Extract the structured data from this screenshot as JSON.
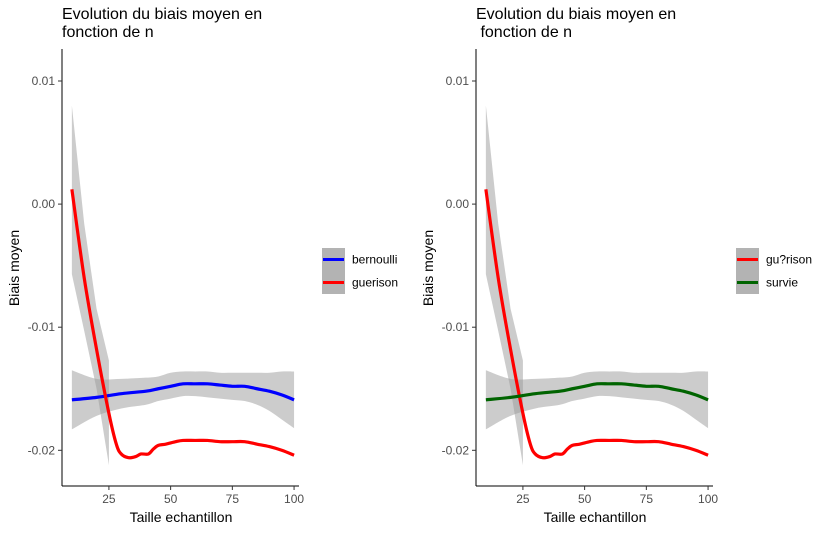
{
  "chart_data": [
    {
      "type": "line",
      "title": [
        "Evolution du biais moyen en",
        "fonction de n"
      ],
      "xlabel": "Taille echantillon",
      "ylabel": "Biais moyen",
      "xlim": [
        6,
        102
      ],
      "ylim": [
        -0.0229,
        0.0126
      ],
      "xticks": [
        25,
        50,
        75,
        100
      ],
      "yticks": [
        0.01,
        0.0,
        -0.01,
        -0.02
      ],
      "yticklabels": [
        "0.01",
        "0.00",
        "-0.01",
        "-0.02"
      ],
      "grid": false,
      "legend": "right",
      "series": [
        {
          "name": "bernoulli",
          "color": "#0000ff",
          "x": [
            10,
            20,
            30,
            40,
            45,
            50,
            55,
            60,
            65,
            70,
            75,
            80,
            85,
            90,
            95,
            100
          ],
          "y": [
            -0.0159,
            -0.0157,
            -0.0154,
            -0.0152,
            -0.015,
            -0.0148,
            -0.0146,
            -0.0146,
            -0.0146,
            -0.0147,
            -0.0148,
            -0.0148,
            -0.015,
            -0.0152,
            -0.0155,
            -0.0159
          ],
          "ci_lower": [
            -0.0183,
            -0.0172,
            -0.0166,
            -0.0163,
            -0.016,
            -0.0158,
            -0.0156,
            -0.0156,
            -0.0157,
            -0.0158,
            -0.0159,
            -0.016,
            -0.0163,
            -0.0168,
            -0.0175,
            -0.0182
          ],
          "ci_upper": [
            -0.0135,
            -0.0142,
            -0.0142,
            -0.0141,
            -0.014,
            -0.0137,
            -0.0136,
            -0.0136,
            -0.0136,
            -0.0137,
            -0.0137,
            -0.0137,
            -0.0137,
            -0.0137,
            -0.0136,
            -0.0136
          ]
        },
        {
          "name": "guerison",
          "color": "#ff0000",
          "x": [
            10,
            15,
            20,
            25,
            28,
            30,
            33,
            36,
            38,
            41,
            43,
            45,
            48,
            52,
            55,
            60,
            65,
            70,
            75,
            80,
            85,
            90,
            95,
            100
          ],
          "y": [
            0.0012,
            -0.006,
            -0.0118,
            -0.017,
            -0.0195,
            -0.0203,
            -0.0206,
            -0.0205,
            -0.0203,
            -0.0203,
            -0.0199,
            -0.0196,
            -0.0195,
            -0.0193,
            -0.0192,
            -0.0192,
            -0.0192,
            -0.0193,
            -0.0193,
            -0.0193,
            -0.0195,
            -0.0197,
            -0.02,
            -0.0204
          ],
          "ci_lower": [
            -0.0057,
            -0.0103,
            -0.015,
            -0.0212
          ],
          "ci_upper": [
            0.008,
            -0.0016,
            -0.0085,
            -0.0127
          ],
          "ci_x": [
            10,
            15,
            20,
            25
          ]
        }
      ]
    },
    {
      "type": "line",
      "title": [
        "Evolution du biais moyen en",
        " fonction de n"
      ],
      "xlabel": "Taille echantillon",
      "ylabel": "Biais moyen",
      "xlim": [
        6,
        102
      ],
      "ylim": [
        -0.0229,
        0.0126
      ],
      "xticks": [
        25,
        50,
        75,
        100
      ],
      "yticks": [
        0.01,
        0.0,
        -0.01,
        -0.02
      ],
      "yticklabels": [
        "0.01",
        "0.00",
        "-0.01",
        "-0.02"
      ],
      "grid": false,
      "legend": "right",
      "series": [
        {
          "name": "gu?rison",
          "color": "#ff0000",
          "x": [
            10,
            15,
            20,
            25,
            28,
            30,
            33,
            36,
            38,
            41,
            43,
            45,
            48,
            52,
            55,
            60,
            65,
            70,
            75,
            80,
            85,
            90,
            95,
            100
          ],
          "y": [
            0.0012,
            -0.006,
            -0.0118,
            -0.017,
            -0.0195,
            -0.0203,
            -0.0206,
            -0.0205,
            -0.0203,
            -0.0203,
            -0.0199,
            -0.0196,
            -0.0195,
            -0.0193,
            -0.0192,
            -0.0192,
            -0.0192,
            -0.0193,
            -0.0193,
            -0.0193,
            -0.0195,
            -0.0197,
            -0.02,
            -0.0204
          ],
          "ci_lower": [
            -0.0057,
            -0.0103,
            -0.015,
            -0.0212
          ],
          "ci_upper": [
            0.008,
            -0.0016,
            -0.0085,
            -0.0127
          ],
          "ci_x": [
            10,
            15,
            20,
            25
          ]
        },
        {
          "name": "survie",
          "color": "#006400",
          "x": [
            10,
            20,
            30,
            40,
            45,
            50,
            55,
            60,
            65,
            70,
            75,
            80,
            85,
            90,
            95,
            100
          ],
          "y": [
            -0.0159,
            -0.0157,
            -0.0154,
            -0.0152,
            -0.015,
            -0.0148,
            -0.0146,
            -0.0146,
            -0.0146,
            -0.0147,
            -0.0148,
            -0.0148,
            -0.015,
            -0.0152,
            -0.0155,
            -0.0159
          ],
          "ci_lower": [
            -0.0183,
            -0.0172,
            -0.0166,
            -0.0163,
            -0.016,
            -0.0158,
            -0.0156,
            -0.0156,
            -0.0157,
            -0.0158,
            -0.0159,
            -0.016,
            -0.0163,
            -0.0168,
            -0.0175,
            -0.0182
          ],
          "ci_upper": [
            -0.0135,
            -0.0142,
            -0.0142,
            -0.0141,
            -0.014,
            -0.0137,
            -0.0136,
            -0.0136,
            -0.0136,
            -0.0137,
            -0.0137,
            -0.0137,
            -0.0137,
            -0.0137,
            -0.0136,
            -0.0136
          ]
        }
      ]
    }
  ]
}
